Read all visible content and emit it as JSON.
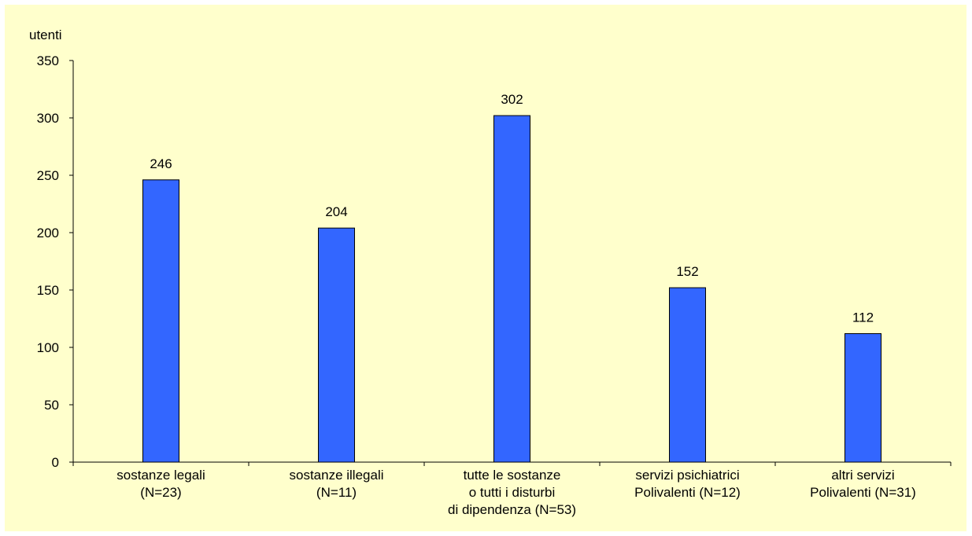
{
  "chart_data": {
    "type": "bar",
    "title": "",
    "xlabel": "",
    "ylabel": "utenti",
    "ylim": [
      0,
      350
    ],
    "yticks": [
      0,
      50,
      100,
      150,
      200,
      250,
      300,
      350
    ],
    "grid": false,
    "legend": "none",
    "categories": [
      [
        "sostanze legali",
        "(N=23)"
      ],
      [
        "sostanze illegali",
        "(N=11)"
      ],
      [
        "tutte le sostanze",
        "o tutti i disturbi",
        "di dipendenza (N=53)"
      ],
      [
        "servizi psichiatrici",
        "Polivalenti (N=12)"
      ],
      [
        "altri servizi",
        "Polivalenti (N=31)"
      ]
    ],
    "values": [
      246,
      204,
      302,
      152,
      112
    ],
    "data_labels": [
      "246",
      "204",
      "302",
      "152",
      "112"
    ],
    "colors": {
      "bar": "#3366ff",
      "background": "#ffffcc",
      "axis": "#000000"
    }
  }
}
